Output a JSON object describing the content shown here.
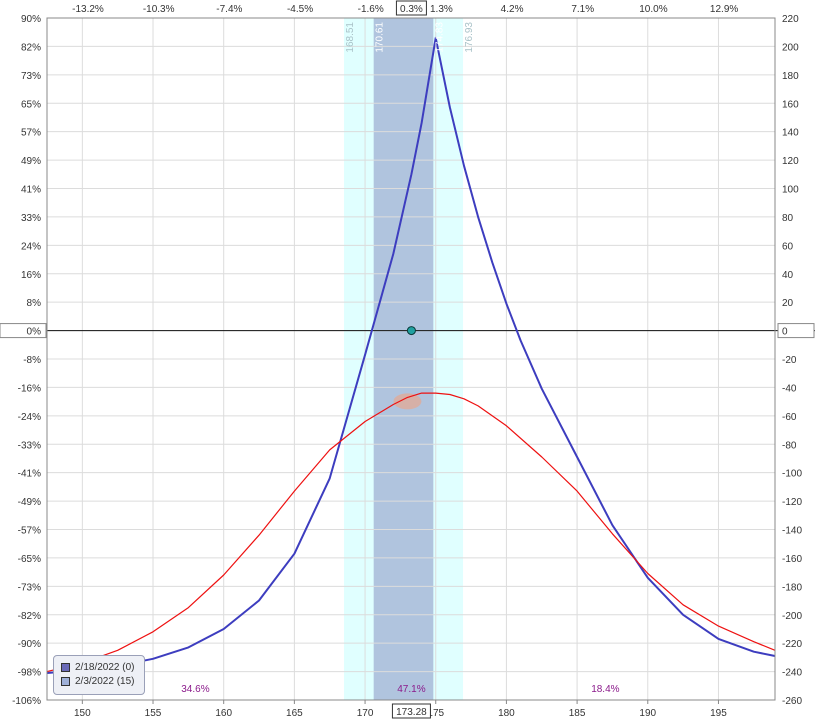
{
  "chart_data": {
    "type": "line",
    "x_axis": {
      "min": 147.5,
      "max": 199,
      "ticks": [
        150,
        155,
        160,
        165,
        170,
        175,
        180,
        185,
        190,
        195
      ],
      "current_price": "173.28"
    },
    "top_axis": {
      "ticks": [
        "-13.2%",
        "-10.3%",
        "-7.4%",
        "-4.5%",
        "-1.6%",
        "1.3%",
        "4.2%",
        "7.1%",
        "10.0%",
        "12.9%"
      ],
      "tick_prices": [
        150.4,
        155.4,
        160.4,
        165.4,
        170.4,
        175.4,
        180.4,
        185.4,
        190.4,
        195.4
      ],
      "current_percent": "0.3%"
    },
    "y_left": {
      "labels": [
        "90%",
        "82%",
        "73%",
        "65%",
        "57%",
        "49%",
        "41%",
        "33%",
        "24%",
        "16%",
        "8%",
        "0%",
        "-8%",
        "-16%",
        "-24%",
        "-33%",
        "-41%",
        "-49%",
        "-57%",
        "-65%",
        "-73%",
        "-82%",
        "-90%",
        "-98%",
        "-106%"
      ]
    },
    "y_right": {
      "min": -260,
      "max": 220,
      "ticks": [
        220,
        200,
        180,
        160,
        140,
        120,
        100,
        80,
        60,
        40,
        20,
        0,
        -20,
        -40,
        -60,
        -80,
        -100,
        -120,
        -140,
        -160,
        -180,
        -200,
        -220,
        -240,
        -260
      ]
    },
    "bands": [
      {
        "from": 168.51,
        "to": 176.93,
        "color": "#e0ffff",
        "label_low": "168.51",
        "label_high": "176.93"
      },
      {
        "from": 170.61,
        "to": 174.83,
        "color": "#b0c4de",
        "label_low": "170.61",
        "label_high": "174.83"
      }
    ],
    "series": [
      {
        "name": "2/18/2022 (0)",
        "color": "#3d3dbf",
        "x": [
          147.5,
          150,
          152.5,
          155,
          157.5,
          160,
          162.5,
          165,
          167.5,
          170,
          172,
          173.28,
          174,
          175,
          176,
          177,
          178,
          179,
          180,
          181,
          182.5,
          185,
          187.5,
          190,
          192.5,
          195,
          197.5,
          199
        ],
        "y": [
          -241,
          -239,
          -236,
          -231,
          -223,
          -210,
          -190,
          -157,
          -104,
          -17,
          54,
          110,
          146,
          206,
          157,
          116,
          80,
          48,
          19,
          -7,
          -41,
          -89,
          -137,
          -174,
          -200,
          -217,
          -226,
          -229
        ]
      },
      {
        "name": "2/3/2022 (15)",
        "color": "#ee1111",
        "x": [
          147.5,
          150,
          152.5,
          155,
          157.5,
          160,
          162.5,
          165,
          167.5,
          170,
          172,
          173,
          174,
          175,
          176,
          177,
          178,
          180,
          182.5,
          185,
          187.5,
          190,
          192.5,
          195,
          197.5,
          199
        ],
        "y": [
          -240,
          -234,
          -225,
          -212,
          -195,
          -172,
          -144,
          -113,
          -84,
          -64,
          -52,
          -47,
          -44,
          -44,
          -45,
          -48,
          -53,
          -67,
          -89,
          -113,
          -143,
          -171,
          -193,
          -208,
          -219,
          -225
        ]
      }
    ],
    "current_point": {
      "x": 173.28,
      "y": 0
    },
    "probabilities": [
      {
        "label": "34.6%",
        "x": 158
      },
      {
        "label": "47.1%",
        "x": 173.28
      },
      {
        "label": "18.4%",
        "x": 187
      }
    ],
    "legend": [
      {
        "label": "2/18/2022 (0)",
        "color": "#6a6ab8"
      },
      {
        "label": "2/3/2022 (15)",
        "color": "#9fb0d8"
      }
    ],
    "zero_label_left": "0%",
    "zero_label_right": "0"
  }
}
